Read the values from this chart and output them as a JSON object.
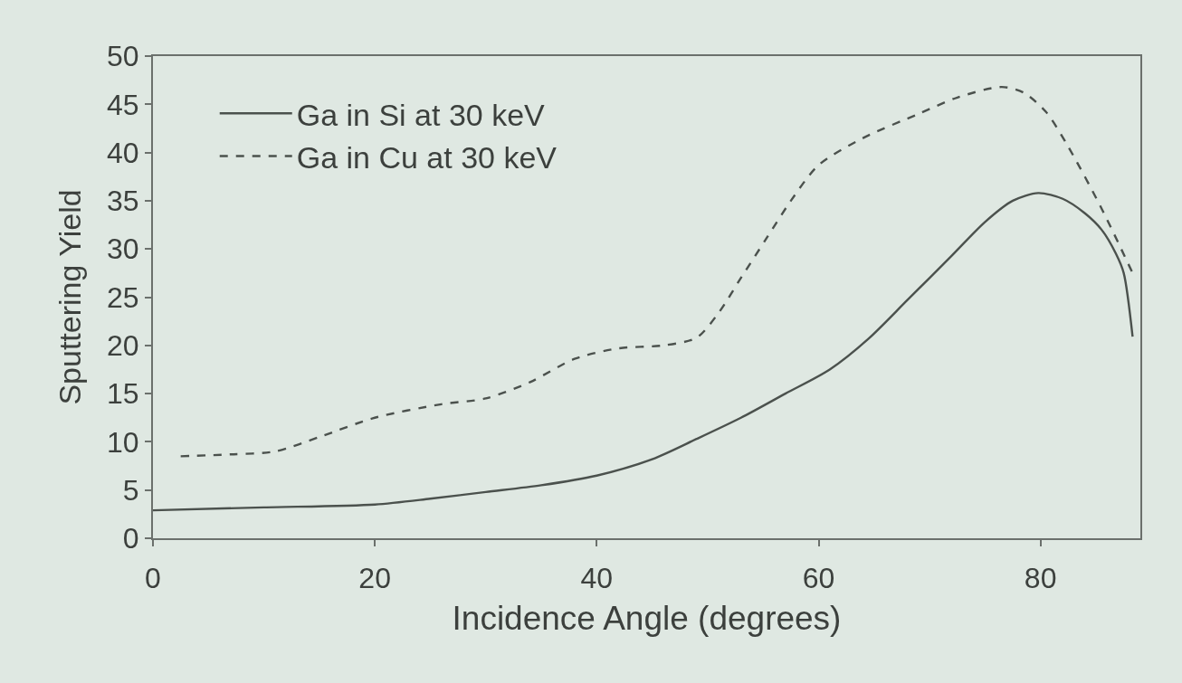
{
  "chart_data": {
    "type": "line",
    "xlabel": "Incidence Angle (degrees)",
    "ylabel": "Sputtering Yield",
    "xlim": [
      0,
      89
    ],
    "xticks": [
      0,
      20,
      40,
      60,
      80
    ],
    "ylim": [
      0,
      50
    ],
    "yticks": [
      0,
      5,
      10,
      15,
      20,
      25,
      30,
      35,
      40,
      45,
      50
    ],
    "grid": false,
    "legend": "top left",
    "marker": "none",
    "series": [
      {
        "name": "Ga in Si at 30 keV",
        "color": "#4b514d",
        "line_style": "solid",
        "x": [
          0,
          10,
          20,
          25,
          30,
          35,
          40,
          45,
          49,
          53,
          57,
          61,
          64.5,
          68,
          72,
          75,
          77.5,
          79.8,
          82,
          84,
          85.5,
          86.8,
          87.5,
          88.3
        ],
        "values": [
          2.9,
          3.2,
          3.5,
          4.1,
          4.8,
          5.5,
          6.5,
          8.2,
          10.3,
          12.5,
          15,
          17.5,
          20.7,
          24.7,
          29.3,
          32.8,
          35,
          35.8,
          35.2,
          33.7,
          32,
          29.5,
          27.5,
          20.9
        ]
      },
      {
        "name": "Ga in Cu at 30 keV",
        "color": "#4b514d",
        "line_style": "dashed",
        "x": [
          2.5,
          7,
          11,
          15,
          20,
          26,
          30,
          34,
          38,
          42,
          46,
          49,
          51,
          53,
          55.3,
          57.5,
          60,
          64,
          69,
          72.5,
          76.5,
          78.5,
          80.5,
          82.5,
          85.5,
          88.3
        ],
        "values": [
          8.5,
          8.7,
          9.0,
          10.5,
          12.5,
          13.9,
          14.5,
          16.2,
          18.6,
          19.7,
          20.0,
          20.8,
          23.4,
          27,
          31.1,
          35,
          38.7,
          41.5,
          44.0,
          45.7,
          46.8,
          46.2,
          44.2,
          40.6,
          34.2,
          27.5
        ]
      }
    ]
  }
}
